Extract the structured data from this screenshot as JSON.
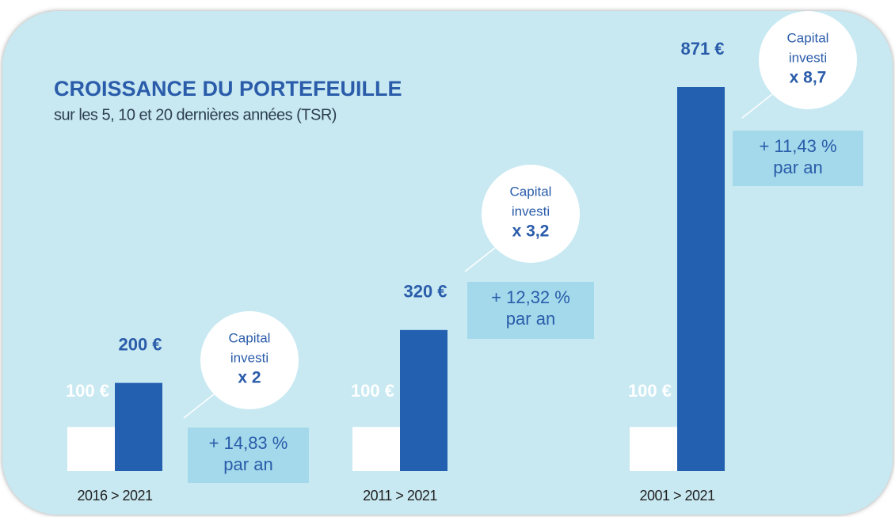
{
  "chart_data": {
    "type": "bar",
    "title": "CROISSANCE DU PORTEFEUILLE",
    "subtitle": "sur les 5, 10 et 20 dernières années (TSR)",
    "categories": [
      "2016 > 2021",
      "2011 > 2021",
      "2001 > 2021"
    ],
    "series": [
      {
        "color": "#ffffff",
        "values": [
          100,
          100,
          100
        ],
        "value_labels": [
          "100 €",
          "100 €",
          "100 €"
        ]
      },
      {
        "color": "#2360b0",
        "values": [
          200,
          320,
          871
        ],
        "value_labels": [
          "200 €",
          "320 €",
          "871 €"
        ]
      }
    ],
    "annotations": [
      {
        "circle": [
          "Capital",
          "investi",
          "x 2"
        ],
        "rate": [
          "+ 14,83 %",
          "par an"
        ]
      },
      {
        "circle": [
          "Capital",
          "investi",
          "x 3,2"
        ],
        "rate": [
          "+ 12,32 %",
          "par an"
        ]
      },
      {
        "circle": [
          "Capital",
          "investi",
          "x 8,7"
        ],
        "rate": [
          "+ 11,43 %",
          "par an"
        ]
      }
    ]
  }
}
